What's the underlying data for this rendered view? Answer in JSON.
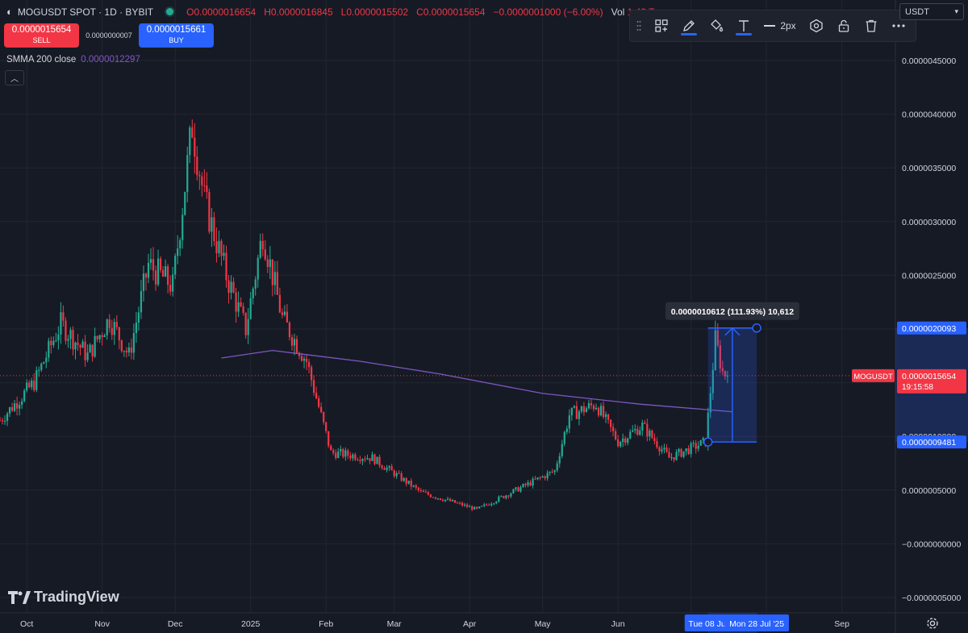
{
  "header": {
    "symbol": "MOGUSDT SPOT · 1D · BYBIT",
    "open_label": "O",
    "open": "0.0000016654",
    "high_label": "H",
    "high": "0.0000016845",
    "low_label": "L",
    "low": "0.0000015502",
    "close_label": "C",
    "close": "0.0000015654",
    "change": "−0.0000001000 (−6.00%)",
    "vol_label": "Vol",
    "vol": "1.43 T"
  },
  "trade": {
    "sell_price": "0.0000015654",
    "sell_label": "SELL",
    "spread": "0.0000000007",
    "buy_price": "0.0000015661",
    "buy_label": "BUY"
  },
  "indicator": {
    "name": "SMMA 200 close",
    "value": "0.0000012297",
    "color": "#7e57c2"
  },
  "currency_select": {
    "value": "USDT"
  },
  "drawing_toolbar": {
    "width_label": "2px"
  },
  "brand": {
    "name": "TradingView"
  },
  "colors": {
    "up": "#22ab94",
    "down": "#f23645",
    "background": "#161a25",
    "grid": "#232631",
    "accent": "#2962ff",
    "smma": "#7e57c2"
  },
  "chart_data": {
    "type": "candlestick",
    "title": "MOGUSDT SPOT · 1D · BYBIT",
    "xlabel": "",
    "ylabel": "",
    "ylim": [
      -5e-07,
      4.5e-06
    ],
    "grid": true,
    "y_ticks": [
      "0.0000045000",
      "0.0000040000",
      "0.0000035000",
      "0.0000030000",
      "0.0000025000",
      "0.0000020000",
      "0.0000015000",
      "0.0000010000",
      "0.0000005000",
      "−0.0000000000",
      "−0.0000005000"
    ],
    "y_tick_values": [
      4.5e-06,
      4e-06,
      3.5e-06,
      3e-06,
      2.5e-06,
      2e-06,
      1.5e-06,
      1e-06,
      5e-07,
      0,
      -5e-07
    ],
    "x_ticks": [
      "Oct",
      "Nov",
      "Dec",
      "2025",
      "Feb",
      "Mar",
      "Apr",
      "May",
      "Jun",
      "Jul",
      "Aug",
      "Sep"
    ],
    "x_tick_dates": [
      "2024-10-01",
      "2024-11-01",
      "2024-12-01",
      "2025-01-01",
      "2025-02-01",
      "2025-03-01",
      "2025-04-01",
      "2025-05-01",
      "2025-06-01",
      "2025-07-01",
      "2025-08-01",
      "2025-09-01"
    ],
    "x_range": [
      "2024-09-20",
      "2025-09-23"
    ],
    "price_path": [
      {
        "date": "2024-09-20",
        "price": 1.15e-06
      },
      {
        "date": "2024-10-04",
        "price": 1.5e-06
      },
      {
        "date": "2024-10-15",
        "price": 2.05e-06
      },
      {
        "date": "2024-10-26",
        "price": 1.75e-06
      },
      {
        "date": "2024-11-04",
        "price": 2.1e-06
      },
      {
        "date": "2024-11-12",
        "price": 1.75e-06
      },
      {
        "date": "2024-11-20",
        "price": 2.6e-06
      },
      {
        "date": "2024-11-30",
        "price": 2.4e-06
      },
      {
        "date": "2024-12-08",
        "price": 3.9e-06
      },
      {
        "date": "2024-12-13",
        "price": 3.2e-06
      },
      {
        "date": "2024-12-22",
        "price": 2.5e-06
      },
      {
        "date": "2024-12-30",
        "price": 2e-06
      },
      {
        "date": "2025-01-06",
        "price": 2.9e-06
      },
      {
        "date": "2025-01-14",
        "price": 2.1e-06
      },
      {
        "date": "2025-01-24",
        "price": 1.7e-06
      },
      {
        "date": "2025-02-03",
        "price": 8.5e-07
      },
      {
        "date": "2025-02-20",
        "price": 8e-07
      },
      {
        "date": "2025-03-12",
        "price": 4.8e-07
      },
      {
        "date": "2025-04-04",
        "price": 3.2e-07
      },
      {
        "date": "2025-04-20",
        "price": 5e-07
      },
      {
        "date": "2025-05-06",
        "price": 6.8e-07
      },
      {
        "date": "2025-05-12",
        "price": 1.2e-06
      },
      {
        "date": "2025-05-23",
        "price": 1.3e-06
      },
      {
        "date": "2025-06-01",
        "price": 9.5e-07
      },
      {
        "date": "2025-06-11",
        "price": 1.1e-06
      },
      {
        "date": "2025-06-22",
        "price": 8e-07
      },
      {
        "date": "2025-07-07",
        "price": 9.5e-07
      },
      {
        "date": "2025-07-11",
        "price": 1.9e-06
      },
      {
        "date": "2025-07-14",
        "price": 1.6e-06
      },
      {
        "date": "2025-07-16",
        "price": 1.5654e-06
      }
    ],
    "smma": [
      {
        "date": "2024-12-20",
        "price": 1.73e-06
      },
      {
        "date": "2025-01-10",
        "price": 1.8e-06
      },
      {
        "date": "2025-02-15",
        "price": 1.7e-06
      },
      {
        "date": "2025-03-20",
        "price": 1.58e-06
      },
      {
        "date": "2025-05-01",
        "price": 1.4e-06
      },
      {
        "date": "2025-06-10",
        "price": 1.3e-06
      },
      {
        "date": "2025-07-18",
        "price": 1.2297e-06
      }
    ],
    "current_price": 1.5654e-06,
    "price_label": {
      "symbol": "MOGUSDT",
      "value": "0.0000015654",
      "countdown": "19:15:58"
    },
    "measure": {
      "label": "0.0000010612 (111.93%) 10,612",
      "start_date": "2025-07-08",
      "end_date": "2025-07-28",
      "low": 9.481e-07,
      "high": 2.0093e-06,
      "low_label": "0.0000009481",
      "high_label": "0.0000020093",
      "start_date_label": "Tue 08 Jul",
      "end_date_label": "Mon 28 Jul '25"
    }
  }
}
